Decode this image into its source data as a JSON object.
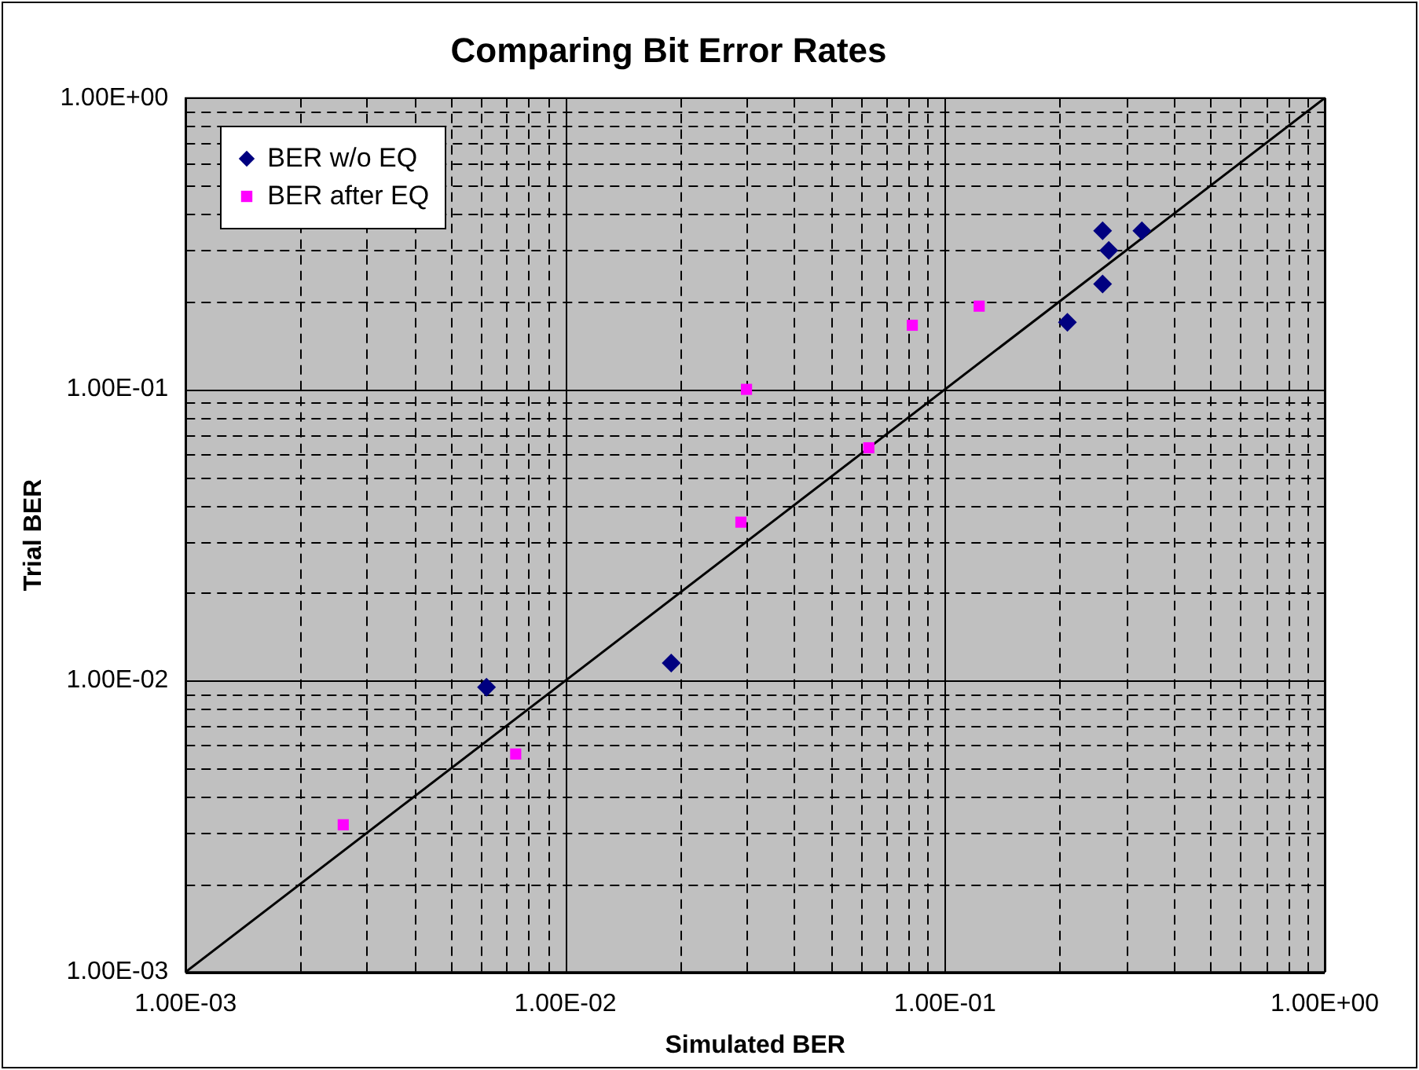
{
  "chart_data": {
    "type": "scatter",
    "title": "Comparing Bit Error Rates",
    "xlabel": "Simulated BER",
    "ylabel": "Trial BER",
    "log": "xy",
    "grid": true,
    "legend": "top left",
    "xlim": [
      0.001,
      1
    ],
    "ylim": [
      0.001,
      1
    ],
    "xticks": [
      {
        "value": 0.001,
        "label": "1.00E-03"
      },
      {
        "value": 0.002,
        "label": null
      },
      {
        "value": 0.003,
        "label": null
      },
      {
        "value": 0.004,
        "label": null
      },
      {
        "value": 0.005,
        "label": null
      },
      {
        "value": 0.006,
        "label": null
      },
      {
        "value": 0.007,
        "label": null
      },
      {
        "value": 0.008,
        "label": null
      },
      {
        "value": 0.009,
        "label": null
      },
      {
        "value": 0.01,
        "label": "1.00E-02"
      },
      {
        "value": 0.02,
        "label": null
      },
      {
        "value": 0.03,
        "label": null
      },
      {
        "value": 0.04,
        "label": null
      },
      {
        "value": 0.05,
        "label": null
      },
      {
        "value": 0.06,
        "label": null
      },
      {
        "value": 0.07,
        "label": null
      },
      {
        "value": 0.08,
        "label": null
      },
      {
        "value": 0.09,
        "label": null
      },
      {
        "value": 0.1,
        "label": "1.00E-01"
      },
      {
        "value": 0.2,
        "label": null
      },
      {
        "value": 0.3,
        "label": null
      },
      {
        "value": 0.4,
        "label": null
      },
      {
        "value": 0.5,
        "label": null
      },
      {
        "value": 0.6,
        "label": null
      },
      {
        "value": 0.7,
        "label": null
      },
      {
        "value": 0.8,
        "label": null
      },
      {
        "value": 0.9,
        "label": null
      },
      {
        "value": 1,
        "label": "1.00E+00"
      }
    ],
    "yticks": [
      {
        "value": 0.001,
        "label": "1.00E-03"
      },
      {
        "value": 0.002,
        "label": null
      },
      {
        "value": 0.003,
        "label": null
      },
      {
        "value": 0.004,
        "label": null
      },
      {
        "value": 0.005,
        "label": null
      },
      {
        "value": 0.006,
        "label": null
      },
      {
        "value": 0.007,
        "label": null
      },
      {
        "value": 0.008,
        "label": null
      },
      {
        "value": 0.009,
        "label": null
      },
      {
        "value": 0.01,
        "label": "1.00E-02"
      },
      {
        "value": 0.02,
        "label": null
      },
      {
        "value": 0.03,
        "label": null
      },
      {
        "value": 0.04,
        "label": null
      },
      {
        "value": 0.05,
        "label": null
      },
      {
        "value": 0.06,
        "label": null
      },
      {
        "value": 0.07,
        "label": null
      },
      {
        "value": 0.08,
        "label": null
      },
      {
        "value": 0.09,
        "label": null
      },
      {
        "value": 0.1,
        "label": "1.00E-01"
      },
      {
        "value": 0.2,
        "label": null
      },
      {
        "value": 0.3,
        "label": null
      },
      {
        "value": 0.4,
        "label": null
      },
      {
        "value": 0.5,
        "label": null
      },
      {
        "value": 0.6,
        "label": null
      },
      {
        "value": 0.7,
        "label": null
      },
      {
        "value": 0.8,
        "label": null
      },
      {
        "value": 0.9,
        "label": null
      },
      {
        "value": 1,
        "label": "1.00E+00"
      }
    ],
    "series": [
      {
        "name": "BER w/o EQ",
        "marker": "diamond",
        "color": "#000080",
        "x": [
          0.0062,
          0.019,
          0.21,
          0.26,
          0.27,
          0.26,
          0.33
        ],
        "values": [
          0.0095,
          0.0115,
          0.17,
          0.35,
          0.3,
          0.23,
          0.35
        ]
      },
      {
        "name": "BER after EQ",
        "marker": "square",
        "color": "#ff00ff",
        "x": [
          0.0026,
          0.0074,
          0.029,
          0.03,
          0.063,
          0.082,
          0.123
        ],
        "values": [
          0.0032,
          0.0056,
          0.035,
          0.1,
          0.063,
          0.166,
          0.193
        ]
      },
      {
        "type": "line",
        "marker": "none",
        "line_style": "solid",
        "color": "#000000",
        "x": [
          0.001,
          1
        ],
        "values": [
          0.001,
          1
        ]
      }
    ]
  }
}
